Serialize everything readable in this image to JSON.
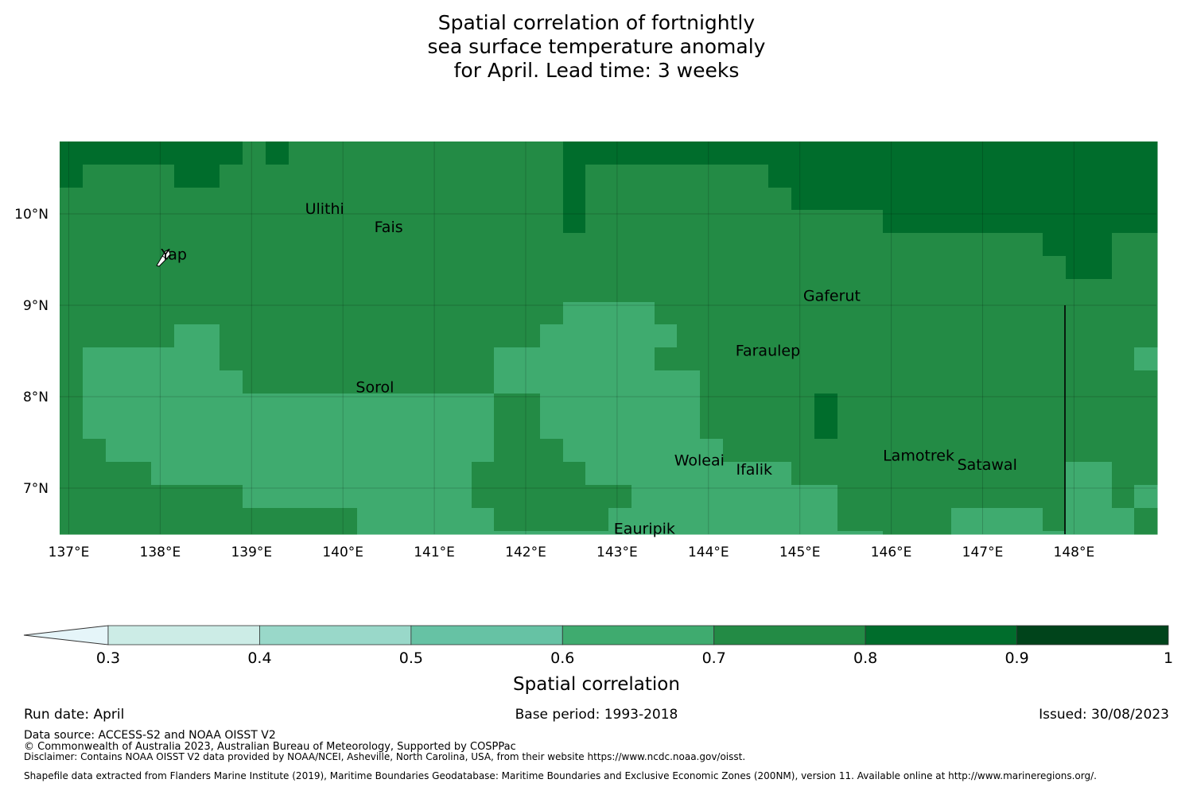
{
  "title": {
    "line1": "Spatial correlation of fortnightly",
    "line2": "sea surface temperature anomaly",
    "line3": "for April. Lead time: 3 weeks"
  },
  "map": {
    "lon_ticks": [
      "137°E",
      "138°E",
      "139°E",
      "140°E",
      "141°E",
      "142°E",
      "143°E",
      "144°E",
      "145°E",
      "146°E",
      "147°E",
      "148°E"
    ],
    "lat_ticks": [
      "10°N",
      "9°N",
      "8°N",
      "7°N"
    ],
    "places": [
      {
        "name": "Ulithi",
        "lon": 139.8,
        "lat": 10.0
      },
      {
        "name": "Fais",
        "lon": 140.5,
        "lat": 9.8
      },
      {
        "name": "Yap",
        "lon": 138.15,
        "lat": 9.5
      },
      {
        "name": "Gaferut",
        "lon": 145.35,
        "lat": 9.05
      },
      {
        "name": "Faraulep",
        "lon": 144.65,
        "lat": 8.45
      },
      {
        "name": "Sorol",
        "lon": 140.35,
        "lat": 8.05
      },
      {
        "name": "Woleai",
        "lon": 143.9,
        "lat": 7.25
      },
      {
        "name": "Ifalik",
        "lon": 144.5,
        "lat": 7.15
      },
      {
        "name": "Lamotrek",
        "lon": 146.3,
        "lat": 7.3
      },
      {
        "name": "Satawal",
        "lon": 147.05,
        "lat": 7.2
      },
      {
        "name": "Eauripik",
        "lon": 143.3,
        "lat": 6.5
      }
    ],
    "class_colors": {
      "a": "#3fab6f",
      "b": "#238b45",
      "c": "#006d2c"
    }
  },
  "colorbar": {
    "tick_labels": [
      "0.3",
      "0.4",
      "0.5",
      "0.6",
      "0.7",
      "0.8",
      "0.9",
      "1"
    ],
    "colors": [
      "#e5f5f9",
      "#ccece6",
      "#99d8c9",
      "#66c2a4",
      "#3fab6f",
      "#238b45",
      "#006d2c",
      "#00441b"
    ],
    "label": "Spatial correlation"
  },
  "footer": {
    "run_date": "Run date: April",
    "base_period": "Base period: 1993-2018",
    "issued": "Issued: 30/08/2023",
    "data_source": "Data source: ACCESS-S2 and NOAA OISST V2",
    "copyright": "© Commonwealth of Australia 2023, Australian Bureau of Meteorology, Supported by COSPPac",
    "disclaimer": "Disclaimer: Contains NOAA OISST V2 data provided by NOAA/NCEI, Asheville, North Carolina, USA, from their website https://www.ncdc.noaa.gov/oisst.",
    "shapefile": "Shapefile data extracted from Flanders Marine Institute (2019), Maritime Boundaries Geodatabase: Maritime Boundaries and Exclusive Economic Zones (200NM), version 11. Available online at http://www.marineregions.org/."
  }
}
